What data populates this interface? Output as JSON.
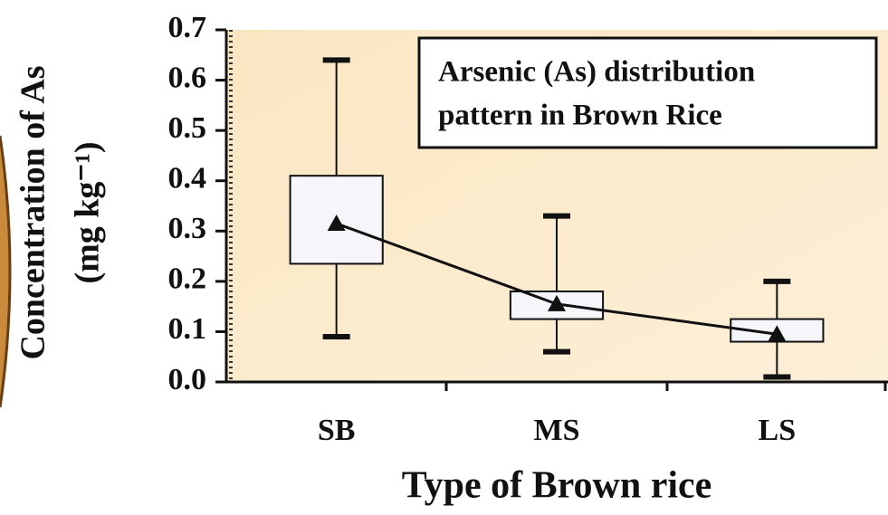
{
  "chart_data": {
    "type": "box",
    "y_label": [
      "Concentration of As",
      "(mg kg⁻¹)"
    ],
    "x_label": "Type of Brown rice",
    "annotation": [
      "Arsenic (As) distribution",
      "pattern in Brown Rice"
    ],
    "categories": [
      "SB",
      "MS",
      "LS"
    ],
    "min": [
      0.09,
      0.06,
      0.01
    ],
    "q1": [
      0.235,
      0.125,
      0.08
    ],
    "q3": [
      0.41,
      0.18,
      0.125
    ],
    "max": [
      0.64,
      0.33,
      0.2
    ],
    "mean": [
      0.315,
      0.155,
      0.095
    ],
    "box_color": "#f6f6fa",
    "line_color": "#111111",
    "ylim": [
      0,
      0.7
    ],
    "yticks": [
      {
        "value": 0,
        "label": "0.0"
      },
      0.1,
      0.2,
      0.3,
      0.4,
      0.5,
      0.6,
      0.7
    ]
  }
}
